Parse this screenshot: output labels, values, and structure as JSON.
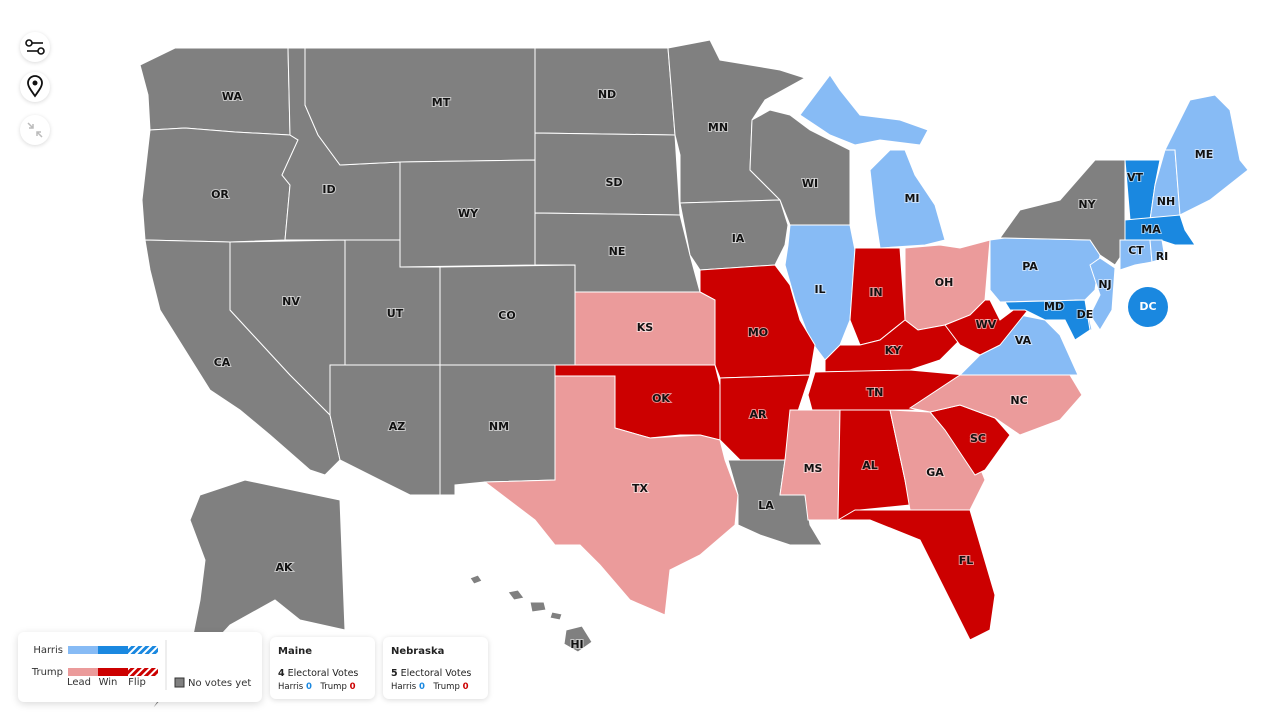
{
  "map": {
    "states": [
      {
        "label": "WA",
        "color": "#808080"
      },
      {
        "label": "OR",
        "color": "#808080"
      },
      {
        "label": "CA",
        "color": "#808080"
      },
      {
        "label": "ID",
        "color": "#808080"
      },
      {
        "label": "NV",
        "color": "#808080"
      },
      {
        "label": "MT",
        "color": "#808080"
      },
      {
        "label": "WY",
        "color": "#808080"
      },
      {
        "label": "UT",
        "color": "#808080"
      },
      {
        "label": "AZ",
        "color": "#808080"
      },
      {
        "label": "CO",
        "color": "#808080"
      },
      {
        "label": "NM",
        "color": "#808080"
      },
      {
        "label": "ND",
        "color": "#808080"
      },
      {
        "label": "SD",
        "color": "#808080"
      },
      {
        "label": "NE",
        "color": "#808080"
      },
      {
        "label": "MN",
        "color": "#808080"
      },
      {
        "label": "IA",
        "color": "#808080"
      },
      {
        "label": "WI",
        "color": "#808080"
      },
      {
        "label": "MI",
        "color": "#87bbf5"
      },
      {
        "label": "IL",
        "color": "#87bbf5"
      },
      {
        "label": "IN",
        "color": "#cc0000"
      },
      {
        "label": "OH",
        "color": "#eb9b9b"
      },
      {
        "label": "KY",
        "color": "#cc0000"
      },
      {
        "label": "TN",
        "color": "#cc0000"
      },
      {
        "label": "MO",
        "color": "#cc0000"
      },
      {
        "label": "KS",
        "color": "#eb9b9b"
      },
      {
        "label": "OK",
        "color": "#cc0000"
      },
      {
        "label": "TX",
        "color": "#eb9b9b"
      },
      {
        "label": "AR",
        "color": "#cc0000"
      },
      {
        "label": "LA",
        "color": "#808080"
      },
      {
        "label": "MS",
        "color": "#eb9b9b"
      },
      {
        "label": "AL",
        "color": "#cc0000"
      },
      {
        "label": "GA",
        "color": "#eb9b9b"
      },
      {
        "label": "FL",
        "color": "#cc0000"
      },
      {
        "label": "SC",
        "color": "#cc0000"
      },
      {
        "label": "NC",
        "color": "#eb9b9b"
      },
      {
        "label": "VA",
        "color": "#87bbf5"
      },
      {
        "label": "WV",
        "color": "#cc0000"
      },
      {
        "label": "PA",
        "color": "#87bbf5"
      },
      {
        "label": "NY",
        "color": "#808080"
      },
      {
        "label": "NJ",
        "color": "#87bbf5"
      },
      {
        "label": "DE",
        "color": "#87bbf5"
      },
      {
        "label": "MD",
        "color": "#1a88e0"
      },
      {
        "label": "VT",
        "color": "#1a88e0"
      },
      {
        "label": "NH",
        "color": "#87bbf5"
      },
      {
        "label": "ME",
        "color": "#87bbf5"
      },
      {
        "label": "MA",
        "color": "#1a88e0"
      },
      {
        "label": "CT",
        "color": "#87bbf5"
      },
      {
        "label": "RI",
        "color": "#87bbf5"
      },
      {
        "label": "AK",
        "color": "#808080"
      },
      {
        "label": "HI",
        "color": "#808080"
      },
      {
        "label": "DC",
        "color": "#1a88e0"
      }
    ]
  },
  "legend": {
    "rows": [
      {
        "label": "Harris",
        "colors": [
          "#87bbf5",
          "#1a88e0"
        ]
      },
      {
        "label": "Trump",
        "colors": [
          "#eb9b9b",
          "#cc0000"
        ]
      }
    ],
    "columns": [
      "Lead",
      "Win",
      "Flip"
    ],
    "no_votes": {
      "label": "No votes yet",
      "color": "#808080"
    }
  },
  "cards": [
    {
      "title": "Maine",
      "votes": 4,
      "votes_label": "Electoral Votes",
      "harris_label": "Harris",
      "harris": 0,
      "trump_label": "Trump",
      "trump": 0
    },
    {
      "title": "Nebraska",
      "votes": 5,
      "votes_label": "Electoral Votes",
      "harris_label": "Harris",
      "harris": 0,
      "trump_label": "Trump",
      "trump": 0
    }
  ]
}
